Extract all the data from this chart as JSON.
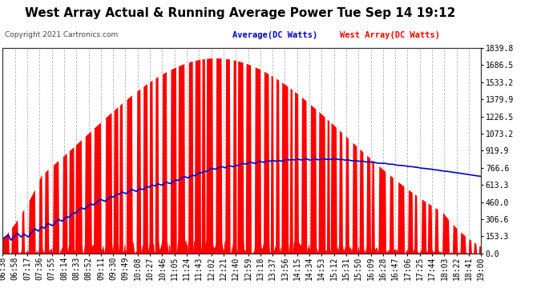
{
  "title": "West Array Actual & Running Average Power Tue Sep 14 19:12",
  "copyright": "Copyright 2021 Cartronics.com",
  "legend_avg": "Average(DC Watts)",
  "legend_west": "West Array(DC Watts)",
  "yticks": [
    0.0,
    153.3,
    306.6,
    460.0,
    613.3,
    766.6,
    919.9,
    1073.2,
    1226.5,
    1379.9,
    1533.2,
    1686.5,
    1839.8
  ],
  "ymax": 1839.8,
  "xtick_labels": [
    "06:38",
    "06:58",
    "07:17",
    "07:36",
    "07:55",
    "08:14",
    "08:33",
    "08:52",
    "09:11",
    "09:30",
    "09:49",
    "10:08",
    "10:27",
    "10:46",
    "11:05",
    "11:24",
    "11:43",
    "12:02",
    "12:21",
    "12:40",
    "12:59",
    "13:18",
    "13:37",
    "13:56",
    "14:15",
    "14:34",
    "14:53",
    "15:12",
    "15:31",
    "15:50",
    "16:09",
    "16:28",
    "16:47",
    "17:06",
    "17:25",
    "17:44",
    "18:03",
    "18:22",
    "18:41",
    "19:00"
  ],
  "bg_color": "#ffffff",
  "plot_bg": "#ffffff",
  "grid_color": "#aaaaaa",
  "title_color": "#000000",
  "avg_line_color": "#0000cc",
  "west_fill_color": "#ff0000",
  "west_line_color": "#ff0000",
  "copyright_color": "#222222",
  "title_fontsize": 11,
  "tick_fontsize": 7.0,
  "ytick_color": "#000000",
  "xtick_color": "#000000"
}
